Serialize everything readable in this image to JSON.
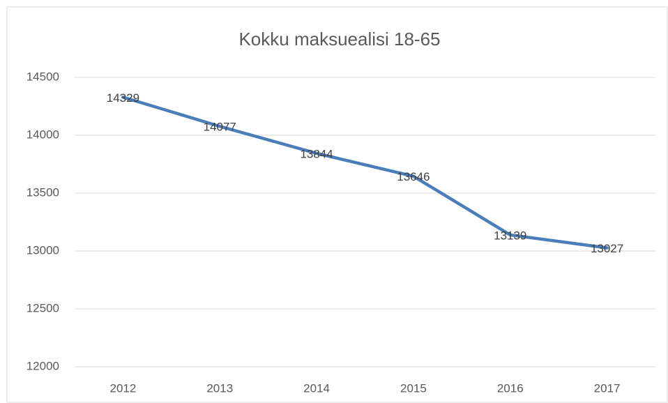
{
  "chart_data": {
    "type": "line",
    "title": "Kokku maksuealisi 18-65",
    "categories": [
      "2012",
      "2013",
      "2014",
      "2015",
      "2016",
      "2017"
    ],
    "values": [
      14329,
      14077,
      13844,
      13646,
      13139,
      13027
    ],
    "color": "#4a7ebb",
    "ylim": [
      12000,
      14500
    ],
    "yticks": [
      12000,
      12500,
      13000,
      13500,
      14000,
      14500
    ],
    "grid": true
  }
}
